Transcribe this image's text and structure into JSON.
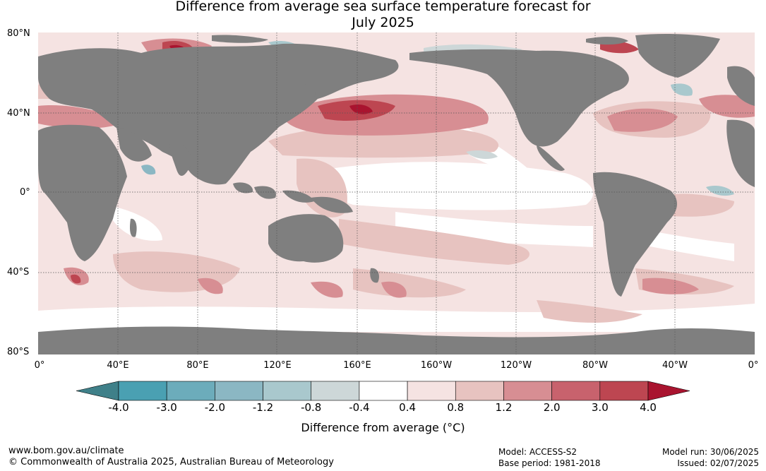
{
  "title_line1": "Difference from average sea surface temperature forecast for",
  "title_line2": "July 2025",
  "lat_labels": [
    "80°N",
    "40°N",
    "0°",
    "40°S",
    "80°S"
  ],
  "lon_labels": [
    "0°",
    "40°E",
    "80°E",
    "120°E",
    "160°E",
    "160°W",
    "120°W",
    "80°W",
    "40°W",
    "0°"
  ],
  "colorbar": {
    "title": "Difference from average (°C)",
    "labels": [
      "-4.0",
      "-3.0",
      "-2.0",
      "-1.2",
      "-0.8",
      "-0.4",
      "0.4",
      "0.8",
      "1.2",
      "2.0",
      "3.0",
      "4.0"
    ],
    "colors": [
      "#3f8089",
      "#4aa0b2",
      "#6cacbb",
      "#8bb7c3",
      "#a9c8cd",
      "#cdd7d8",
      "#ffffff",
      "#f5e3e2",
      "#e7c3c0",
      "#d78e93",
      "#c8626d",
      "#bd4651",
      "#a9142f"
    ]
  },
  "footer": {
    "website": "www.bom.gov.au/climate",
    "copyright": "© Commonwealth of Australia 2025, Australian Bureau of Meteorology",
    "model": "Model: ACCESS-S2",
    "base_period": "Base period: 1981-2018",
    "model_run": "Model run: 30/06/2025",
    "issued": "Issued: 02/07/2025"
  },
  "colors": {
    "land": "#7f7f7f",
    "ocean_neutral": "#ffffff"
  }
}
